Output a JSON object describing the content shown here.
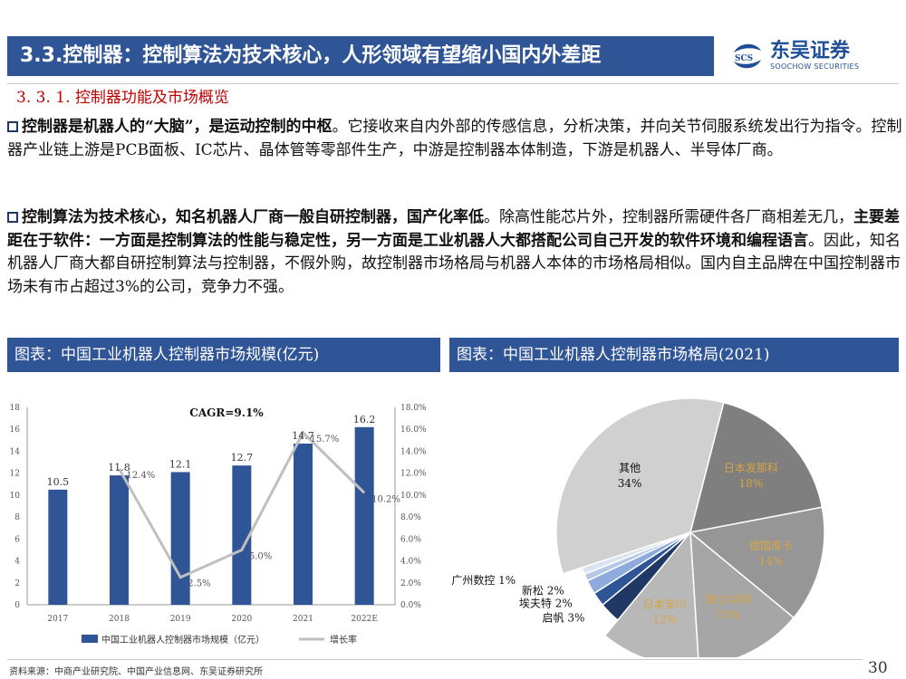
{
  "header": {
    "title": "3.3.控制器：控制算法为技术核心，人形领域有望缩小国内外差距",
    "logo_cn": "东吴证券",
    "logo_en": "SOOCHOW SECURITIES"
  },
  "section_title": "3. 3. 1. 控制器功能及市场概览",
  "paragraphs": [
    {
      "bold": "控制器是机器人的“大脑”，是运动控制的中枢",
      "rest": "。它接收来自内外部的传感信息，分析决策，并向关节伺服系统发出行为指令。控制器产业链上游是PCB面板、IC芯片、晶体管等零部件生产，中游是控制器本体制造，下游是机器人、半导体厂商。"
    },
    {
      "bold1": "控制算法为技术核心，知名机器人厂商一般自研控制器，国产化率低",
      "mid1": "。除高性能芯片外，控制器所需硬件各厂商相差无几，",
      "bold2": "主要差距在于软件：一方面是控制算法的性能与稳定性，另一方面是工业机器人大都搭配公司自己开发的软件环境和编程语言",
      "rest": "。因此，知名机器人厂商大都自研控制算法与控制器，不假外购，故控制器市场格局与机器人本体的市场格局相似。国内自主品牌在中国控制器市场未有市占超过3%的公司，竞争力不强。"
    }
  ],
  "panels": {
    "left_title": "图表：中国工业机器人控制器市场规模(亿元)",
    "right_title": "图表：中国工业机器人控制器市场格局(2021)"
  },
  "chart_data": [
    {
      "type": "bar",
      "categories": [
        "2017",
        "2018",
        "2019",
        "2020",
        "2021",
        "2022E"
      ],
      "series": [
        {
          "name": "中国工业机器人控制器市场规模（亿元）",
          "values": [
            10.5,
            11.8,
            12.1,
            12.7,
            14.7,
            16.2
          ],
          "labels": [
            "10.5",
            "11.8",
            "12.1",
            "12.7",
            "14.7",
            "16.2"
          ]
        },
        {
          "name": "增长率",
          "type": "line",
          "values": [
            null,
            12.4,
            2.5,
            5.0,
            15.7,
            10.2
          ],
          "labels": [
            "",
            "12.4%",
            "2.5%",
            "5.0%",
            "15.7%",
            "10.2%"
          ]
        }
      ],
      "annotation": "CAGR=9.1%",
      "ylim": [
        0,
        18
      ],
      "y_ticks": [
        "0",
        "2",
        "4",
        "6",
        "8",
        "10",
        "12",
        "14",
        "16",
        "18"
      ],
      "y2lim": [
        0,
        18
      ],
      "y2_ticks": [
        "0.0%",
        "2.0%",
        "4.0%",
        "6.0%",
        "8.0%",
        "10.0%",
        "12.0%",
        "14.0%",
        "16.0%",
        "18.0%"
      ],
      "legend": "bottom",
      "colors": {
        "bar": "#2f5597",
        "line": "#bfbfbf"
      }
    },
    {
      "type": "pie",
      "slices": [
        {
          "name": "日本发那科",
          "value": 18,
          "label": "18%",
          "color": "#7f7f7f",
          "label_color": "#d9a443"
        },
        {
          "name": "德国库卡",
          "value": 14,
          "label": "14%",
          "color": "#969696",
          "label_color": "#d9a443"
        },
        {
          "name": "瑞士ABB",
          "value": 13,
          "label": "13%",
          "color": "#a6a6a6",
          "label_color": "#d9a443"
        },
        {
          "name": "日本安川",
          "value": 12,
          "label": "12%",
          "color": "#b8b8b8",
          "label_color": "#d9a443"
        },
        {
          "name": "启帆",
          "value": 3,
          "label": "3%",
          "color": "#1f3864",
          "label_color": "#111111"
        },
        {
          "name": "埃夫特",
          "value": 2,
          "label": "2%",
          "color": "#2f5597",
          "label_color": "#111111"
        },
        {
          "name": "新松",
          "value": 2,
          "label": "2%",
          "color": "#8faadc",
          "label_color": "#111111"
        },
        {
          "name": "埃斯顿、广州数控",
          "value": 1,
          "label": "1%",
          "color": "#b4c7e7",
          "label_color": "#111111"
        },
        {
          "name": "_gap",
          "value": 1,
          "label": "",
          "color": "#dae3f3",
          "label_color": "#111111"
        },
        {
          "name": "其他",
          "value": 34,
          "label": "34%",
          "color": "#d0d0d0",
          "label_color": "#111111"
        }
      ]
    }
  ],
  "footer": {
    "source": "资料来源：中商产业研究院、中国产业信息网、东吴证券研究所",
    "page": "30"
  }
}
